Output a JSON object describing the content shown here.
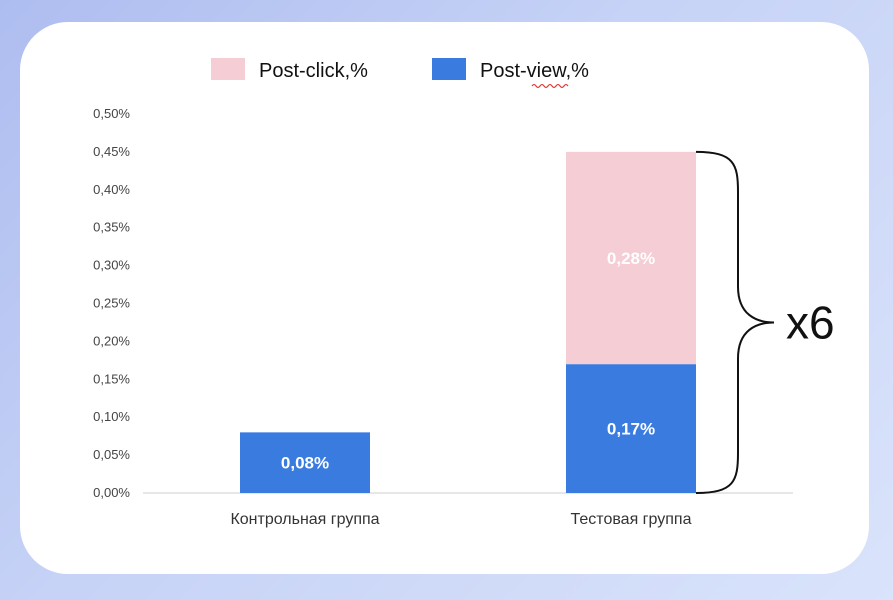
{
  "chart_data": {
    "type": "bar",
    "stacked": true,
    "categories": [
      "Контрольная группа",
      "Тестовая группа"
    ],
    "series": [
      {
        "name": "Post-view,%",
        "values": [
          0.08,
          0.17
        ],
        "labels": [
          "0,08%",
          "0,17%"
        ],
        "color": "#3a7be0"
      },
      {
        "name": "Post-click,%",
        "values": [
          0,
          0.28
        ],
        "labels": [
          "",
          "0,28%"
        ],
        "color": "#f4cdd5"
      }
    ],
    "ylim": [
      0,
      0.5
    ],
    "yticks": [
      0,
      0.05,
      0.1,
      0.15,
      0.2,
      0.25,
      0.3,
      0.35,
      0.4,
      0.45,
      0.5
    ],
    "ytick_labels": [
      "0,00%",
      "0,05%",
      "0,10%",
      "0,15%",
      "0,20%",
      "0,25%",
      "0,30%",
      "0,35%",
      "0,40%",
      "0,45%",
      "0,50%"
    ],
    "legend": {
      "position": "top",
      "items": [
        {
          "label": "Post-click,%",
          "color": "#f4cdd5"
        },
        {
          "label": "Post-view,%",
          "color": "#3a7be0"
        }
      ]
    },
    "annotation": "x6",
    "grid": false
  }
}
